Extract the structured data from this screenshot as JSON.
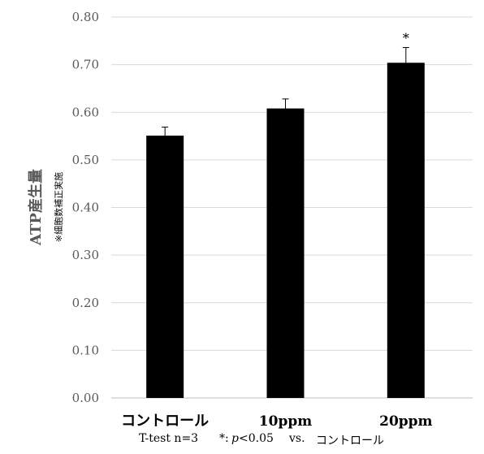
{
  "chart_data": {
    "type": "bar",
    "categories": [
      "コントロール",
      "10ppm",
      "20ppm"
    ],
    "values": [
      0.551,
      0.608,
      0.704
    ],
    "errors": [
      0.018,
      0.02,
      0.032
    ],
    "significance": [
      "",
      "",
      "*"
    ],
    "ylabel": "ATP産生量",
    "ylabel_note": "※細胞数補正実施",
    "ylim": [
      0,
      0.8
    ],
    "yticks": [
      "0.00",
      "0.10",
      "0.20",
      "0.30",
      "0.40",
      "0.50",
      "0.60",
      "0.70",
      "0.80"
    ],
    "grid": true,
    "bar_color": "#000000",
    "grid_color": "#d9d9d9",
    "tick_color": "#595959"
  },
  "footnote": {
    "test": "T-test n=3",
    "p_prefix": "*:",
    "p_var": "p",
    "p_value": "<0.05",
    "vs": "vs.",
    "control": "コントロール"
  }
}
